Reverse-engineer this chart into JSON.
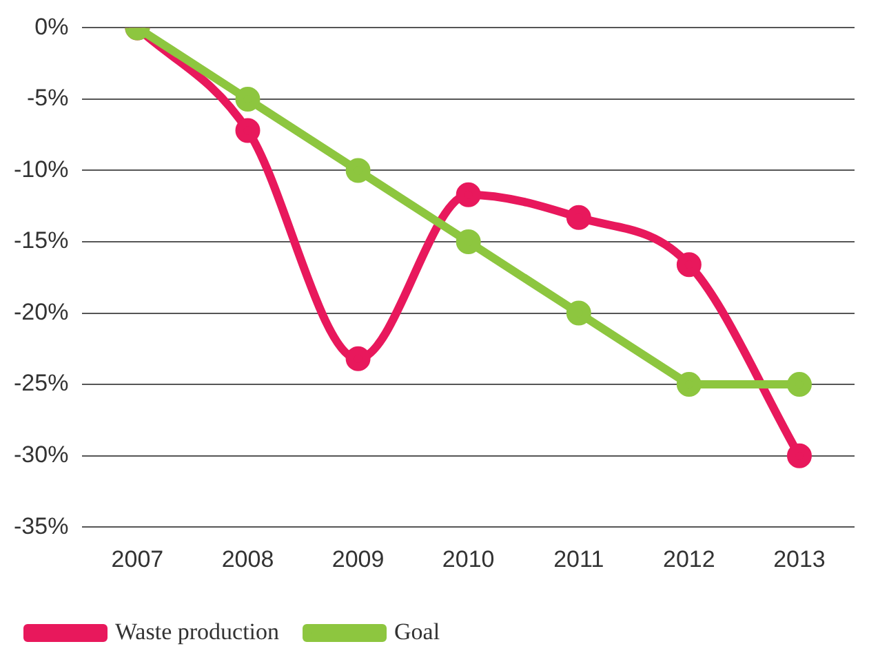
{
  "chart_data": {
    "type": "line",
    "categories": [
      "2007",
      "2008",
      "2009",
      "2010",
      "2011",
      "2012",
      "2013"
    ],
    "series": [
      {
        "name": "Waste production",
        "color": "#e8185c",
        "values": [
          0,
          -7.2,
          -23.2,
          -11.7,
          -13.3,
          -16.6,
          -30
        ]
      },
      {
        "name": "Goal",
        "color": "#8dc63f",
        "values": [
          0,
          -5,
          -10,
          -15,
          -20,
          -25,
          -25
        ]
      }
    ],
    "ylim": [
      -35,
      0
    ],
    "yticks": [
      {
        "value": 0,
        "label": "0%"
      },
      {
        "value": -5,
        "label": "-5%"
      },
      {
        "value": -10,
        "label": "-10%"
      },
      {
        "value": -15,
        "label": "-15%"
      },
      {
        "value": -20,
        "label": "-20%"
      },
      {
        "value": -25,
        "label": "-25%"
      },
      {
        "value": -30,
        "label": "-30%"
      },
      {
        "value": -35,
        "label": "-35%"
      }
    ],
    "grid": "y",
    "legend": "bottom",
    "marker": "circle",
    "line_style": "solid"
  }
}
